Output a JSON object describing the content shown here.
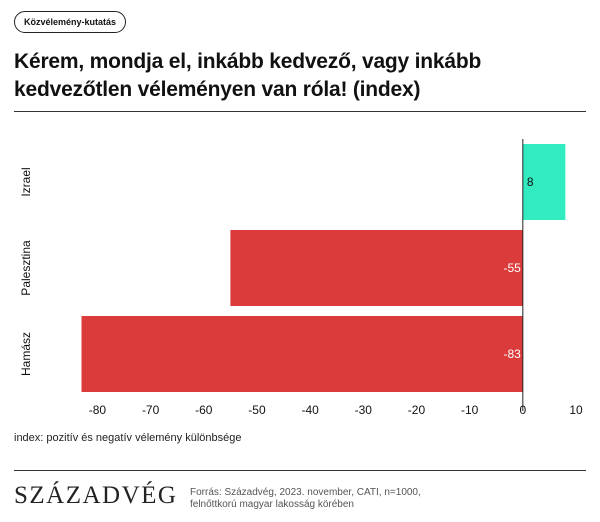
{
  "tag": "Közvélemény-kutatás",
  "title": "Kérem, mondja el, inkább kedvező, vagy inkább kedvezőtlen véleményen van róla! (index)",
  "note": "index: pozitív és negatív vélemény különbsége",
  "logo": "SZÁZADVÉG",
  "source": "Forrás: Századvég, 2023. november, CATI, n=1000, felnőttkorú magyar lakosság körében",
  "chart_data": {
    "type": "bar",
    "orientation": "horizontal",
    "categories": [
      "Izrael",
      "Palesztina",
      "Hamász"
    ],
    "values": [
      8,
      -55,
      -83
    ],
    "value_labels": [
      "8",
      "-55",
      "-83"
    ],
    "colors": [
      "#33ebc0",
      "#dc3b3b",
      "#dc3b3b"
    ],
    "xlim": [
      -83,
      10
    ],
    "xticks": [
      -80,
      -70,
      -60,
      -50,
      -40,
      -30,
      -20,
      -10,
      0,
      10
    ],
    "grid": false
  }
}
